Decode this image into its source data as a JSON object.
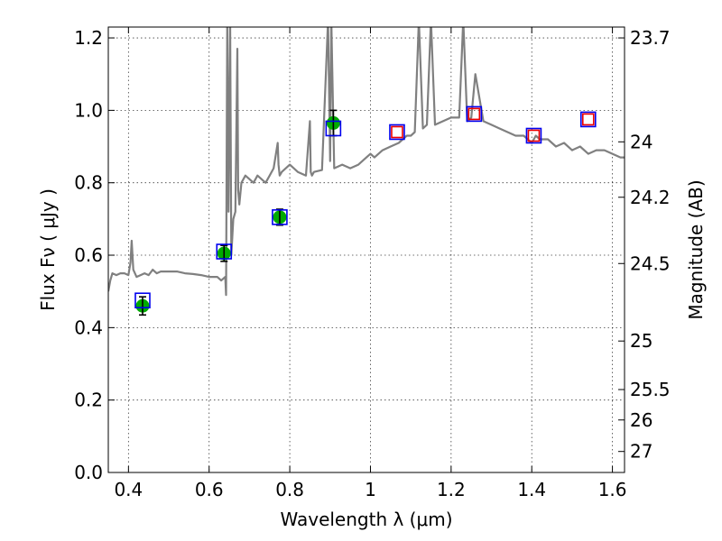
{
  "chart_data": {
    "type": "scatter",
    "title": "",
    "xlabel": "Wavelength  λ (μm)",
    "ylabel": "Flux  Fν  ( μJy )",
    "ylabel_right": "Magnitude (AB)",
    "xlim": [
      0.35,
      1.63
    ],
    "ylim": [
      0.0,
      1.23
    ],
    "grid": true,
    "x_ticks": [
      0.4,
      0.6,
      0.8,
      1.0,
      1.2,
      1.4,
      1.6
    ],
    "x_tick_labels": [
      "0.4",
      "0.6",
      "0.8",
      "1",
      "1.2",
      "1.4",
      "1.6"
    ],
    "y_ticks": [
      0.0,
      0.2,
      0.4,
      0.6,
      0.8,
      1.0,
      1.2
    ],
    "y_tick_labels": [
      "0.0",
      "0.2",
      "0.4",
      "0.6",
      "0.8",
      "1.0",
      "1.2"
    ],
    "right_ticks": [
      {
        "label": "23.7",
        "flux": 1.2
      },
      {
        "label": "24",
        "flux": 0.913
      },
      {
        "label": "24.2",
        "flux": 0.76
      },
      {
        "label": "24.5",
        "flux": 0.577
      },
      {
        "label": "25",
        "flux": 0.363
      },
      {
        "label": "25.5",
        "flux": 0.229
      },
      {
        "label": "26",
        "flux": 0.145
      },
      {
        "label": "27",
        "flux": 0.058
      }
    ],
    "series": [
      {
        "type": "line",
        "color": "#808080",
        "x": [
          0.35,
          0.355,
          0.36,
          0.37,
          0.38,
          0.39,
          0.4,
          0.405,
          0.408,
          0.412,
          0.42,
          0.43,
          0.44,
          0.45,
          0.46,
          0.47,
          0.48,
          0.5,
          0.52,
          0.54,
          0.56,
          0.58,
          0.6,
          0.62,
          0.63,
          0.64,
          0.642,
          0.645,
          0.648,
          0.652,
          0.655,
          0.66,
          0.665,
          0.67,
          0.672,
          0.675,
          0.68,
          0.69,
          0.7,
          0.71,
          0.72,
          0.73,
          0.74,
          0.75,
          0.76,
          0.77,
          0.772,
          0.775,
          0.78,
          0.8,
          0.82,
          0.84,
          0.85,
          0.852,
          0.855,
          0.86,
          0.88,
          0.895,
          0.9,
          0.903,
          0.91,
          0.93,
          0.95,
          0.97,
          0.99,
          1.0,
          1.01,
          1.03,
          1.05,
          1.07,
          1.09,
          1.1,
          1.11,
          1.12,
          1.13,
          1.14,
          1.15,
          1.16,
          1.18,
          1.2,
          1.22,
          1.23,
          1.24,
          1.25,
          1.26,
          1.28,
          1.3,
          1.32,
          1.34,
          1.36,
          1.38,
          1.4,
          1.41,
          1.42,
          1.44,
          1.46,
          1.48,
          1.5,
          1.52,
          1.54,
          1.56,
          1.58,
          1.6,
          1.62,
          1.63
        ],
        "y": [
          0.5,
          0.53,
          0.55,
          0.545,
          0.55,
          0.55,
          0.545,
          0.58,
          0.64,
          0.56,
          0.54,
          0.545,
          0.55,
          0.545,
          0.56,
          0.55,
          0.555,
          0.555,
          0.555,
          0.55,
          0.548,
          0.545,
          0.54,
          0.54,
          0.53,
          0.54,
          0.49,
          1.25,
          0.72,
          1.25,
          0.6,
          0.7,
          0.72,
          1.17,
          0.78,
          0.74,
          0.8,
          0.82,
          0.81,
          0.8,
          0.82,
          0.81,
          0.8,
          0.82,
          0.84,
          0.91,
          0.85,
          0.82,
          0.83,
          0.85,
          0.83,
          0.82,
          0.97,
          0.83,
          0.82,
          0.83,
          0.835,
          1.25,
          0.86,
          1.25,
          0.84,
          0.85,
          0.84,
          0.85,
          0.87,
          0.88,
          0.87,
          0.89,
          0.9,
          0.91,
          0.93,
          0.93,
          0.94,
          1.25,
          0.95,
          0.96,
          1.25,
          0.96,
          0.97,
          0.98,
          0.98,
          1.25,
          0.97,
          0.98,
          1.1,
          0.97,
          0.96,
          0.95,
          0.94,
          0.93,
          0.93,
          0.91,
          0.93,
          0.92,
          0.92,
          0.9,
          0.91,
          0.89,
          0.9,
          0.88,
          0.89,
          0.89,
          0.88,
          0.87,
          0.87
        ]
      },
      {
        "type": "errorbar",
        "color": "#00aa00",
        "x": [
          0.435,
          0.637,
          0.775,
          0.908
        ],
        "y": [
          0.46,
          0.605,
          0.705,
          0.965
        ],
        "yerr": [
          0.025,
          0.022,
          0.022,
          0.035
        ]
      },
      {
        "type": "open_square",
        "color": "#0000ee",
        "x": [
          0.435,
          0.637,
          0.775,
          0.908,
          1.066,
          1.257,
          1.405,
          1.54
        ],
        "y": [
          0.475,
          0.61,
          0.705,
          0.95,
          0.94,
          0.99,
          0.93,
          0.975
        ]
      },
      {
        "type": "open_square",
        "color": "#ee0000",
        "x": [
          1.066,
          1.257,
          1.405,
          1.54
        ],
        "y": [
          0.94,
          0.99,
          0.93,
          0.975
        ]
      }
    ]
  }
}
